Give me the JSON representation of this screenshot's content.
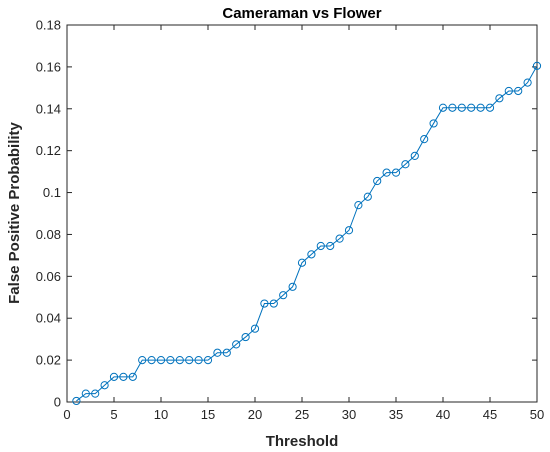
{
  "chart_data": {
    "type": "line",
    "title": "Cameraman vs Flower",
    "xlabel": "Threshold",
    "ylabel": "False Positive Probability",
    "xlim": [
      0,
      50
    ],
    "ylim": [
      0,
      0.18
    ],
    "xticks": [
      0,
      5,
      10,
      15,
      20,
      25,
      30,
      35,
      40,
      45,
      50
    ],
    "xtick_labels": [
      "0",
      "5",
      "10",
      "15",
      "20",
      "25",
      "30",
      "35",
      "40",
      "45",
      "50"
    ],
    "yticks": [
      0,
      0.02,
      0.04,
      0.06,
      0.08,
      0.1,
      0.12,
      0.14,
      0.16,
      0.18
    ],
    "ytick_labels": [
      "0",
      "0.02",
      "0.04",
      "0.06",
      "0.08",
      "0.1",
      "0.12",
      "0.14",
      "0.16",
      "0.18"
    ],
    "grid": false,
    "marker": "circle",
    "series": [
      {
        "color": "#0072bd",
        "x": [
          1,
          2,
          3,
          4,
          5,
          6,
          7,
          8,
          9,
          10,
          11,
          12,
          13,
          14,
          15,
          16,
          17,
          18,
          19,
          20,
          21,
          22,
          23,
          24,
          25,
          26,
          27,
          28,
          29,
          30,
          31,
          32,
          33,
          34,
          35,
          36,
          37,
          38,
          39,
          40,
          41,
          42,
          43,
          44,
          45,
          46,
          47,
          48,
          49,
          50
        ],
        "y": [
          0.0005,
          0.004,
          0.004,
          0.008,
          0.012,
          0.012,
          0.012,
          0.02,
          0.02,
          0.02,
          0.02,
          0.02,
          0.02,
          0.02,
          0.02,
          0.0235,
          0.0235,
          0.0275,
          0.031,
          0.035,
          0.047,
          0.047,
          0.051,
          0.055,
          0.0665,
          0.0705,
          0.0745,
          0.0745,
          0.078,
          0.082,
          0.094,
          0.098,
          0.1055,
          0.1095,
          0.1095,
          0.1135,
          0.1175,
          0.1255,
          0.133,
          0.1405,
          0.1405,
          0.1405,
          0.1405,
          0.1405,
          0.1405,
          0.145,
          0.1485,
          0.1485,
          0.1525,
          0.1605
        ]
      }
    ]
  }
}
